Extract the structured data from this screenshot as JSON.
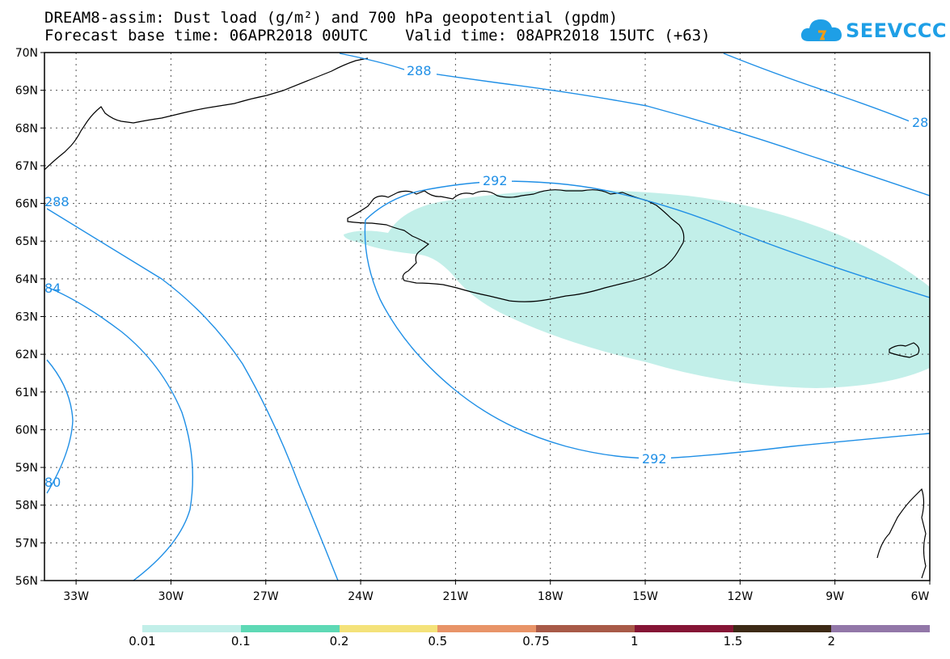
{
  "header": {
    "title_line1": "DREAM8-assim: Dust load (g/m²) and 700 hPa geopotential (gpdm)",
    "title_line2": "Forecast base time: 06APR2018 00UTC    Valid time: 08APR2018 15UTC (+63)",
    "logo_text": "SEEVCCC",
    "logo_color": "#1e9fe6"
  },
  "map": {
    "lat_labels": [
      "70N",
      "69N",
      "68N",
      "67N",
      "66N",
      "65N",
      "64N",
      "63N",
      "62N",
      "61N",
      "60N",
      "59N",
      "58N",
      "57N",
      "56N"
    ],
    "lon_labels": [
      "33W",
      "30W",
      "27W",
      "24W",
      "21W",
      "18W",
      "15W",
      "12W",
      "9W",
      "6W"
    ],
    "contour_labels": [
      "288",
      "288",
      "28",
      "292",
      "292",
      "84",
      "80"
    ],
    "contour_color": "#1f8fe6",
    "dust_fill_color": "#c2efe9"
  },
  "colorbar": {
    "colors": [
      "#c2efe9",
      "#5ed9b5",
      "#f4e27a",
      "#e89468",
      "#a85a48",
      "#851535",
      "#3d2a16",
      "#9277a8"
    ],
    "labels": [
      "0.01",
      "0.1",
      "0.2",
      "0.5",
      "0.75",
      "1",
      "1.5",
      "2"
    ]
  }
}
